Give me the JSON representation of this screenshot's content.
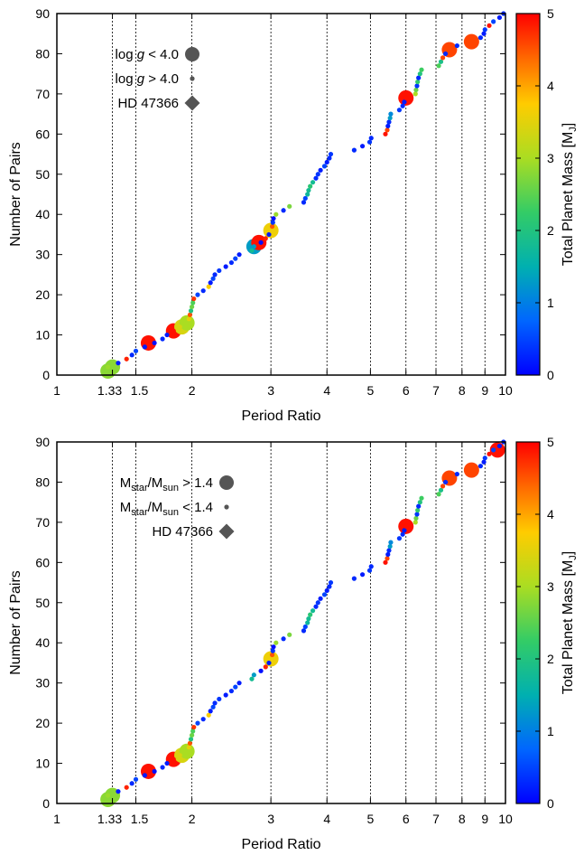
{
  "chart_data": [
    {
      "type": "scatter",
      "xlabel": "Period Ratio",
      "ylabel": "Number of Pairs",
      "xscale": "log",
      "xlim": [
        1,
        10
      ],
      "ylim": [
        0,
        90
      ],
      "xticks": [
        "1",
        "1.33",
        "1.5",
        "2",
        "3",
        "4",
        "5",
        "6",
        "7",
        "8",
        "9",
        "10"
      ],
      "yticks": [
        "0",
        "10",
        "20",
        "30",
        "40",
        "50",
        "60",
        "70",
        "80",
        "90"
      ],
      "vlines": [
        1.33,
        1.5,
        2,
        3,
        4,
        5,
        6,
        7,
        8,
        9
      ],
      "colorbar": {
        "label_main": "Total Planet Mass [M",
        "label_sub": "J",
        "label_end": "]",
        "range": [
          0,
          5
        ],
        "ticks": [
          "0",
          "1",
          "2",
          "3",
          "4",
          "5"
        ]
      },
      "legend": {
        "placement": "top-left",
        "entries": [
          {
            "label_main": "log ",
            "label_italic": "g",
            "label_rest": " < 4.0",
            "marker": "large-circle"
          },
          {
            "label_main": "log ",
            "label_italic": "g",
            "label_rest": " > 4.0",
            "marker": "small-circle"
          },
          {
            "label_main": "HD 47366",
            "marker": "diamond"
          }
        ]
      },
      "highlight": [
        {
          "x": 1.3,
          "y": 1,
          "mass": 2.8
        },
        {
          "x": 1.33,
          "y": 2,
          "mass": 2.8
        },
        {
          "x": 1.6,
          "y": 8,
          "mass": 4.9
        },
        {
          "x": 1.82,
          "y": 11,
          "mass": 4.9
        },
        {
          "x": 1.9,
          "y": 12,
          "mass": 3.4
        },
        {
          "x": 1.95,
          "y": 13,
          "mass": 3.0
        },
        {
          "x": 2.75,
          "y": 32,
          "mass": 1.3
        },
        {
          "x": 2.82,
          "y": 33,
          "mass": 4.9
        },
        {
          "x": 3.0,
          "y": 36,
          "mass": 3.6
        },
        {
          "x": 6.0,
          "y": 69,
          "mass": 4.9
        },
        {
          "x": 7.5,
          "y": 81,
          "mass": 4.6
        },
        {
          "x": 8.4,
          "y": 83,
          "mass": 4.6
        }
      ],
      "hd47366": null
    },
    {
      "type": "scatter",
      "xlabel": "Period Ratio",
      "ylabel": "Number of Pairs",
      "xscale": "log",
      "xlim": [
        1,
        10
      ],
      "ylim": [
        0,
        90
      ],
      "xticks": [
        "1",
        "1.33",
        "1.5",
        "2",
        "3",
        "4",
        "5",
        "6",
        "7",
        "8",
        "9",
        "10"
      ],
      "yticks": [
        "0",
        "10",
        "20",
        "30",
        "40",
        "50",
        "60",
        "70",
        "80",
        "90"
      ],
      "vlines": [
        1.33,
        1.5,
        2,
        3,
        4,
        5,
        6,
        7,
        8,
        9
      ],
      "colorbar": {
        "label_main": "Total Planet Mass [M",
        "label_sub": "J",
        "label_end": "]",
        "range": [
          0,
          5
        ],
        "ticks": [
          "0",
          "1",
          "2",
          "3",
          "4",
          "5"
        ]
      },
      "legend": {
        "placement": "top-left",
        "entries": [
          {
            "label_main": "M",
            "label_sub1": "star",
            "label_mid": "/M",
            "label_sub2": "sun",
            "label_rest": " > 1.4",
            "marker": "large-circle"
          },
          {
            "label_main": "M",
            "label_sub1": "star",
            "label_mid": "/M",
            "label_sub2": "sun",
            "label_rest": " < 1.4",
            "marker": "small-circle"
          },
          {
            "label_main": "HD 47366",
            "marker": "diamond"
          }
        ]
      },
      "highlight": [
        {
          "x": 1.3,
          "y": 1,
          "mass": 2.8
        },
        {
          "x": 1.33,
          "y": 2,
          "mass": 2.8
        },
        {
          "x": 1.6,
          "y": 8,
          "mass": 4.9
        },
        {
          "x": 1.82,
          "y": 11,
          "mass": 4.9
        },
        {
          "x": 1.9,
          "y": 12,
          "mass": 3.4
        },
        {
          "x": 1.95,
          "y": 13,
          "mass": 3.0
        },
        {
          "x": 3.0,
          "y": 36,
          "mass": 3.6
        },
        {
          "x": 6.0,
          "y": 69,
          "mass": 4.9
        },
        {
          "x": 7.5,
          "y": 81,
          "mass": 4.6
        },
        {
          "x": 8.4,
          "y": 83,
          "mass": 4.6
        },
        {
          "x": 9.6,
          "y": 88,
          "mass": 4.9
        }
      ],
      "hd47366": null
    }
  ],
  "pairs": [
    {
      "x": 1.28,
      "y": 1,
      "mass": 2.8
    },
    {
      "x": 1.3,
      "y": 2,
      "mass": 2.9
    },
    {
      "x": 1.37,
      "y": 3,
      "mass": 0.2
    },
    {
      "x": 1.43,
      "y": 4,
      "mass": 4.8
    },
    {
      "x": 1.47,
      "y": 5,
      "mass": 0.3
    },
    {
      "x": 1.5,
      "y": 6,
      "mass": 0.5
    },
    {
      "x": 1.57,
      "y": 7,
      "mass": 0.2
    },
    {
      "x": 1.65,
      "y": 8,
      "mass": 0.1
    },
    {
      "x": 1.72,
      "y": 9,
      "mass": 0.3
    },
    {
      "x": 1.76,
      "y": 10,
      "mass": 0.2
    },
    {
      "x": 1.82,
      "y": 11,
      "mass": 4.9
    },
    {
      "x": 1.88,
      "y": 12,
      "mass": 3.4
    },
    {
      "x": 1.95,
      "y": 13,
      "mass": 3.0
    },
    {
      "x": 1.97,
      "y": 14,
      "mass": 3.5
    },
    {
      "x": 1.98,
      "y": 15,
      "mass": 4.5
    },
    {
      "x": 1.99,
      "y": 16,
      "mass": 2.0
    },
    {
      "x": 2.0,
      "y": 17,
      "mass": 2.6
    },
    {
      "x": 2.01,
      "y": 18,
      "mass": 2.4
    },
    {
      "x": 2.02,
      "y": 19,
      "mass": 4.7
    },
    {
      "x": 2.06,
      "y": 20,
      "mass": 0.5
    },
    {
      "x": 2.12,
      "y": 21,
      "mass": 0.3
    },
    {
      "x": 2.18,
      "y": 22,
      "mass": 3.7
    },
    {
      "x": 2.2,
      "y": 23,
      "mass": 0.2
    },
    {
      "x": 2.23,
      "y": 24,
      "mass": 0.5
    },
    {
      "x": 2.25,
      "y": 25,
      "mass": 0.3
    },
    {
      "x": 2.3,
      "y": 26,
      "mass": 0.4
    },
    {
      "x": 2.38,
      "y": 27,
      "mass": 0.2
    },
    {
      "x": 2.45,
      "y": 28,
      "mass": 0.3
    },
    {
      "x": 2.5,
      "y": 29,
      "mass": 0.5
    },
    {
      "x": 2.55,
      "y": 30,
      "mass": 0.2
    },
    {
      "x": 2.72,
      "y": 31,
      "mass": 1.8
    },
    {
      "x": 2.75,
      "y": 32,
      "mass": 1.3
    },
    {
      "x": 2.85,
      "y": 33,
      "mass": 0.1
    },
    {
      "x": 2.92,
      "y": 34,
      "mass": 4.8
    },
    {
      "x": 2.97,
      "y": 35,
      "mass": 0.2
    },
    {
      "x": 3.0,
      "y": 36,
      "mass": 3.6
    },
    {
      "x": 3.02,
      "y": 37,
      "mass": 4.5
    },
    {
      "x": 3.03,
      "y": 38,
      "mass": 0.4
    },
    {
      "x": 3.04,
      "y": 39,
      "mass": 0.1
    },
    {
      "x": 3.08,
      "y": 40,
      "mass": 2.9
    },
    {
      "x": 3.2,
      "y": 41,
      "mass": 0.3
    },
    {
      "x": 3.3,
      "y": 42,
      "mass": 2.7
    },
    {
      "x": 3.55,
      "y": 43,
      "mass": 0.3
    },
    {
      "x": 3.58,
      "y": 44,
      "mass": 0.5
    },
    {
      "x": 3.62,
      "y": 45,
      "mass": 1.7
    },
    {
      "x": 3.64,
      "y": 46,
      "mass": 1.8
    },
    {
      "x": 3.67,
      "y": 47,
      "mass": 2.1
    },
    {
      "x": 3.72,
      "y": 48,
      "mass": 1.8
    },
    {
      "x": 3.78,
      "y": 49,
      "mass": 0.3
    },
    {
      "x": 3.82,
      "y": 50,
      "mass": 0.4
    },
    {
      "x": 3.87,
      "y": 51,
      "mass": 0.2
    },
    {
      "x": 3.95,
      "y": 52,
      "mass": 0.5
    },
    {
      "x": 4.0,
      "y": 53,
      "mass": 0.2
    },
    {
      "x": 4.05,
      "y": 54,
      "mass": 0.3
    },
    {
      "x": 4.08,
      "y": 55,
      "mass": 0.4
    },
    {
      "x": 4.6,
      "y": 56,
      "mass": 0.3
    },
    {
      "x": 4.8,
      "y": 57,
      "mass": 0.2
    },
    {
      "x": 4.98,
      "y": 58,
      "mass": 0.4
    },
    {
      "x": 5.02,
      "y": 59,
      "mass": 0.3
    },
    {
      "x": 5.4,
      "y": 60,
      "mass": 4.9
    },
    {
      "x": 5.45,
      "y": 61,
      "mass": 4.6
    },
    {
      "x": 5.47,
      "y": 62,
      "mass": 0.2
    },
    {
      "x": 5.5,
      "y": 63,
      "mass": 0.3
    },
    {
      "x": 5.53,
      "y": 64,
      "mass": 1.3
    },
    {
      "x": 5.55,
      "y": 65,
      "mass": 1.1
    },
    {
      "x": 5.8,
      "y": 66,
      "mass": 0.4
    },
    {
      "x": 5.9,
      "y": 67,
      "mass": 0.3
    },
    {
      "x": 5.95,
      "y": 68,
      "mass": 0.2
    },
    {
      "x": 6.0,
      "y": 69,
      "mass": 4.9
    },
    {
      "x": 6.3,
      "y": 70,
      "mass": 3.0
    },
    {
      "x": 6.32,
      "y": 71,
      "mass": 2.6
    },
    {
      "x": 6.35,
      "y": 72,
      "mass": 0.4
    },
    {
      "x": 6.37,
      "y": 73,
      "mass": 2.2
    },
    {
      "x": 6.4,
      "y": 74,
      "mass": 0.3
    },
    {
      "x": 6.45,
      "y": 75,
      "mass": 2.0
    },
    {
      "x": 6.5,
      "y": 76,
      "mass": 2.3
    },
    {
      "x": 7.1,
      "y": 77,
      "mass": 2.4
    },
    {
      "x": 7.18,
      "y": 78,
      "mass": 1.9
    },
    {
      "x": 7.25,
      "y": 79,
      "mass": 4.6
    },
    {
      "x": 7.35,
      "y": 80,
      "mass": 0.3
    },
    {
      "x": 7.5,
      "y": 81,
      "mass": 4.6
    },
    {
      "x": 7.8,
      "y": 82,
      "mass": 0.3
    },
    {
      "x": 8.4,
      "y": 83,
      "mass": 4.6
    },
    {
      "x": 8.8,
      "y": 84,
      "mass": 0.3
    },
    {
      "x": 8.95,
      "y": 85,
      "mass": 0.2
    },
    {
      "x": 9.0,
      "y": 86,
      "mass": 0.4
    },
    {
      "x": 9.2,
      "y": 87,
      "mass": 4.9
    },
    {
      "x": 9.4,
      "y": 88,
      "mass": 0.5
    },
    {
      "x": 9.7,
      "y": 89,
      "mass": 0.2
    },
    {
      "x": 9.9,
      "y": 90,
      "mass": 0.3
    }
  ]
}
